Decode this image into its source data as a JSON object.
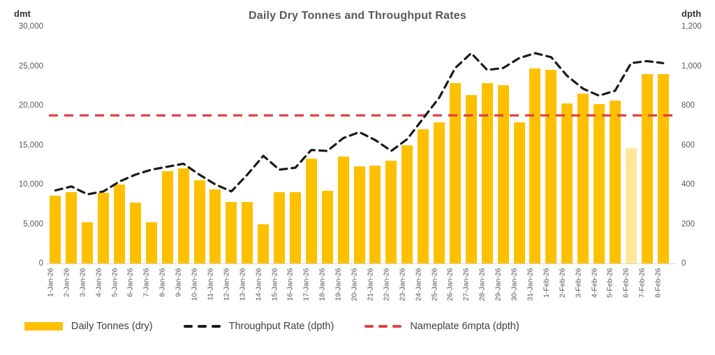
{
  "title": "Daily Dry Tonnes and Throughput Rates",
  "left_axis": {
    "unit": "dmt",
    "ticks": [
      "30,000",
      "25,000",
      "20,000",
      "15,000",
      "10,000",
      "5,000",
      "0"
    ]
  },
  "right_axis": {
    "unit": "dpth",
    "ticks": [
      "1,200",
      "1,000",
      "800",
      "600",
      "400",
      "200",
      "0"
    ]
  },
  "legend": [
    {
      "label": "Daily Tonnes (dry)",
      "swatch": "bar",
      "color": "#FFC000"
    },
    {
      "label": "Throughput Rate (dpth)",
      "swatch": "dashed-line",
      "color": "#1A1A1A"
    },
    {
      "label": "Nameplate 6mpta (dpth)",
      "swatch": "dashed-line",
      "color": "#E04040"
    }
  ],
  "colors": {
    "bar": "#FFC000",
    "bar_highlight": "#FFE699",
    "throughput_line": "#1A1A1A",
    "nameplate_line": "#E04040",
    "title_text": "#595959",
    "axis_text": "#595959",
    "unit_text": "#333333",
    "axis_line": "#D9D9D9"
  },
  "chart_data": {
    "type": "bar",
    "title": "Daily Dry Tonnes and Throughput Rates",
    "xlabel": "",
    "ylabel_left": "dmt",
    "ylabel_right": "dpth",
    "axes": {
      "left": {
        "unit": "dmt",
        "min": 0,
        "max": 30000,
        "step": 5000
      },
      "right": {
        "unit": "dpth",
        "min": 0,
        "max": 1200,
        "step": 200
      }
    },
    "grid": false,
    "legend_position": "bottom",
    "categories": [
      "1-Jan-26",
      "2-Jan-26",
      "3-Jan-26",
      "4-Jan-26",
      "5-Jan-26",
      "6-Jan-26",
      "7-Jan-26",
      "8-Jan-26",
      "9-Jan-26",
      "10-Jan-26",
      "11-Jan-26",
      "12-Jan-26",
      "13-Jan-26",
      "14-Jan-26",
      "15-Jan-26",
      "16-Jan-26",
      "17-Jan-26",
      "18-Jan-26",
      "19-Jan-26",
      "20-Jan-26",
      "21-Jan-26",
      "22-Jan-26",
      "23-Jan-26",
      "24-Jan-26",
      "25-Jan-26",
      "26-Jan-26",
      "27-Jan-26",
      "28-Jan-26",
      "29-Jan-26",
      "30-Jan-26",
      "31-Jan-26",
      "1-Feb-26",
      "2-Feb-26",
      "3-Feb-26",
      "4-Feb-26",
      "5-Feb-26",
      "6-Feb-26",
      "7-Feb-26",
      "8-Feb-26"
    ],
    "series": [
      {
        "name": "Daily Tonnes (dry)",
        "type": "bar",
        "axis": "left",
        "values": [
          8600,
          9000,
          5200,
          8900,
          10000,
          7700,
          5200,
          11700,
          12000,
          10500,
          9400,
          7800,
          7800,
          5000,
          9000,
          9000,
          13300,
          9200,
          13500,
          12300,
          12400,
          13000,
          15000,
          17000,
          17900,
          22800,
          21300,
          22800,
          22600,
          17900,
          24700,
          24500,
          20300,
          21500,
          20200,
          20600,
          14600,
          24000,
          24000
        ]
      },
      {
        "name": "Throughput Rate (dpth)",
        "type": "line",
        "style": "dashed",
        "axis": "right",
        "values": [
          370,
          390,
          350,
          365,
          415,
          450,
          475,
          490,
          505,
          450,
          400,
          365,
          450,
          545,
          475,
          485,
          575,
          570,
          635,
          665,
          625,
          570,
          630,
          735,
          840,
          990,
          1065,
          980,
          990,
          1040,
          1065,
          1045,
          950,
          885,
          850,
          875,
          1015,
          1025,
          1015
        ]
      },
      {
        "name": "Nameplate 6mpta (dpth)",
        "type": "horizontal-line",
        "style": "dashed",
        "axis": "right",
        "value": 750
      }
    ],
    "highlight": {
      "category": "6-Feb-26",
      "index": 36,
      "bar_color": "#FFE699"
    }
  }
}
